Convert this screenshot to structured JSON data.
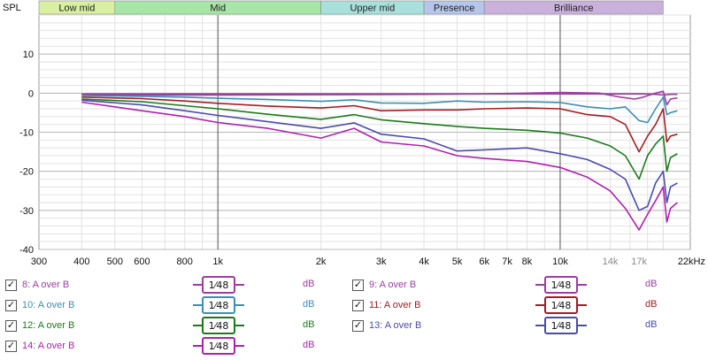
{
  "chart_data": {
    "type": "line",
    "ylabel": "SPL",
    "ylim": [
      -40,
      20
    ],
    "yticks": [
      10,
      0,
      -10,
      -20,
      -30,
      -40
    ],
    "x_scale": "log",
    "xlim": [
      300,
      24000
    ],
    "xticks": [
      {
        "value": 300,
        "label": "300",
        "muted": false
      },
      {
        "value": 400,
        "label": "400",
        "muted": false
      },
      {
        "value": 500,
        "label": "500",
        "muted": false
      },
      {
        "value": 600,
        "label": "600",
        "muted": false
      },
      {
        "value": 800,
        "label": "800",
        "muted": false
      },
      {
        "value": 1000,
        "label": "1k",
        "muted": false
      },
      {
        "value": 2000,
        "label": "2k",
        "muted": false
      },
      {
        "value": 3000,
        "label": "3k",
        "muted": false
      },
      {
        "value": 4000,
        "label": "4k",
        "muted": false
      },
      {
        "value": 5000,
        "label": "5k",
        "muted": false
      },
      {
        "value": 6000,
        "label": "6k",
        "muted": false
      },
      {
        "value": 7000,
        "label": "7k",
        "muted": false
      },
      {
        "value": 8000,
        "label": "8k",
        "muted": false
      },
      {
        "value": 10000,
        "label": "10k",
        "muted": false
      },
      {
        "value": 14000,
        "label": "14k",
        "muted": true
      },
      {
        "value": 17000,
        "label": "17k",
        "muted": true
      },
      {
        "value": 22000,
        "label": "22kHz",
        "muted": false
      }
    ],
    "bands": [
      {
        "name": "Low mid",
        "from": 300,
        "to": 500,
        "color": "#d9f0a3"
      },
      {
        "name": "Mid",
        "from": 500,
        "to": 2000,
        "color": "#a6e6a6"
      },
      {
        "name": "Upper mid",
        "from": 2000,
        "to": 4000,
        "color": "#a8e0dc"
      },
      {
        "name": "Presence",
        "from": 4000,
        "to": 6000,
        "color": "#b5c6ea"
      },
      {
        "name": "Brilliance",
        "from": 6000,
        "to": 20000,
        "color": "#c9b1dc"
      }
    ],
    "grid": true,
    "legend_position": "bottom",
    "series": [
      {
        "name": "8: A over B",
        "color": "#9a3fa0",
        "x": [
          400,
          600,
          1000,
          2000,
          4000,
          8000,
          10000,
          13000,
          15000,
          16500,
          17500,
          19000,
          20000,
          21000,
          22000
        ],
        "y": [
          -0.2,
          -0.2,
          -0.2,
          -0.2,
          -0.2,
          -0.2,
          -0.2,
          -0.2,
          -0.2,
          -0.2,
          -0.2,
          -0.3,
          -0.5,
          -0.3,
          -0.3
        ]
      },
      {
        "name": "9: A over B",
        "color": "#9a3fa0",
        "x": [
          400,
          600,
          1000,
          2000,
          4000,
          6000,
          8000,
          10000,
          13000,
          15000,
          16500,
          17500,
          19000,
          20000,
          20500,
          21000,
          22000
        ],
        "y": [
          -0.5,
          -0.5,
          -0.5,
          -0.4,
          -0.3,
          -0.2,
          0.0,
          0.2,
          0.0,
          -1.0,
          -1.5,
          -1.0,
          0.0,
          0.5,
          -3.0,
          -1.5,
          -1.2
        ]
      },
      {
        "name": "10: A over B",
        "color": "#3a8fb5",
        "x": [
          400,
          600,
          800,
          1000,
          1400,
          2000,
          2500,
          3000,
          4000,
          5000,
          6000,
          8000,
          10000,
          12000,
          14000,
          15500,
          17000,
          18000,
          19000,
          20000,
          20500,
          21000,
          22000
        ],
        "y": [
          -0.6,
          -0.8,
          -1.0,
          -1.3,
          -1.6,
          -2.1,
          -1.7,
          -2.5,
          -2.6,
          -2.0,
          -2.3,
          -2.2,
          -2.4,
          -3.5,
          -4.0,
          -3.5,
          -7.0,
          -7.5,
          -4.0,
          -1.0,
          -5.5,
          -5.0,
          -4.5
        ]
      },
      {
        "name": "11: A over B",
        "color": "#a51c24",
        "x": [
          400,
          600,
          800,
          1000,
          1400,
          2000,
          2500,
          3000,
          4000,
          5000,
          6000,
          8000,
          10000,
          12000,
          14000,
          15500,
          17000,
          18000,
          19000,
          20000,
          20500,
          21000,
          22000
        ],
        "y": [
          -1.0,
          -1.4,
          -2.0,
          -2.6,
          -3.3,
          -3.8,
          -3.2,
          -4.5,
          -4.3,
          -4.3,
          -4.0,
          -3.8,
          -4.0,
          -5.5,
          -6.0,
          -8.0,
          -15.0,
          -11.0,
          -8.0,
          -4.0,
          -12.5,
          -11.0,
          -10.5
        ]
      },
      {
        "name": "12: A over B",
        "color": "#1a7a1a",
        "x": [
          400,
          600,
          800,
          1000,
          1400,
          2000,
          2500,
          3000,
          4000,
          5000,
          6000,
          8000,
          10000,
          12000,
          14000,
          15500,
          17000,
          18000,
          19000,
          20000,
          20500,
          21000,
          22000
        ],
        "y": [
          -1.5,
          -2.2,
          -3.2,
          -4.0,
          -5.4,
          -6.7,
          -5.5,
          -6.8,
          -7.8,
          -8.5,
          -9.0,
          -9.5,
          -10.2,
          -11.5,
          -13.5,
          -16.0,
          -22.0,
          -16.0,
          -13.0,
          -11.0,
          -20.0,
          -16.5,
          -15.5
        ]
      },
      {
        "name": "13: A over B",
        "color": "#4a4ab0",
        "x": [
          400,
          600,
          800,
          1000,
          1400,
          2000,
          2500,
          3000,
          4000,
          5000,
          6000,
          8000,
          10000,
          12000,
          14000,
          15500,
          17000,
          18000,
          19000,
          20000,
          20500,
          21000,
          22000
        ],
        "y": [
          -1.8,
          -3.0,
          -4.5,
          -5.7,
          -7.3,
          -9.0,
          -7.6,
          -10.5,
          -11.7,
          -14.8,
          -14.5,
          -14.0,
          -15.5,
          -17.0,
          -19.5,
          -22.0,
          -30.0,
          -29.0,
          -23.0,
          -20.0,
          -28.0,
          -24.0,
          -23.0
        ]
      },
      {
        "name": "14: A over B",
        "color": "#b020b0",
        "x": [
          400,
          600,
          800,
          1000,
          1400,
          2000,
          2500,
          3000,
          4000,
          5000,
          6000,
          8000,
          10000,
          12000,
          14000,
          15500,
          17000,
          18000,
          19000,
          20000,
          20500,
          21000,
          22000
        ],
        "y": [
          -2.3,
          -4.5,
          -6.0,
          -7.5,
          -9.0,
          -11.5,
          -9.0,
          -12.5,
          -13.5,
          -16.0,
          -16.7,
          -17.5,
          -19.0,
          -21.5,
          -25.0,
          -29.5,
          -35.0,
          -31.0,
          -27.5,
          -24.0,
          -33.0,
          -29.5,
          -28.0
        ]
      }
    ]
  },
  "legend": {
    "smoothing_label": "1⁄48",
    "unit_label": "dB",
    "check_glyph": "✓",
    "items": [
      {
        "label": "8: A over B",
        "color": "#9a3fa0"
      },
      {
        "label": "9: A over B",
        "color": "#9a3fa0"
      },
      {
        "label": "10: A over B",
        "color": "#3a8fb5"
      },
      {
        "label": "11: A over B",
        "color": "#a51c24"
      },
      {
        "label": "12: A over B",
        "color": "#1a7a1a"
      },
      {
        "label": "13: A over B",
        "color": "#4a4ab0"
      },
      {
        "label": "14: A over B",
        "color": "#b020b0"
      }
    ]
  }
}
